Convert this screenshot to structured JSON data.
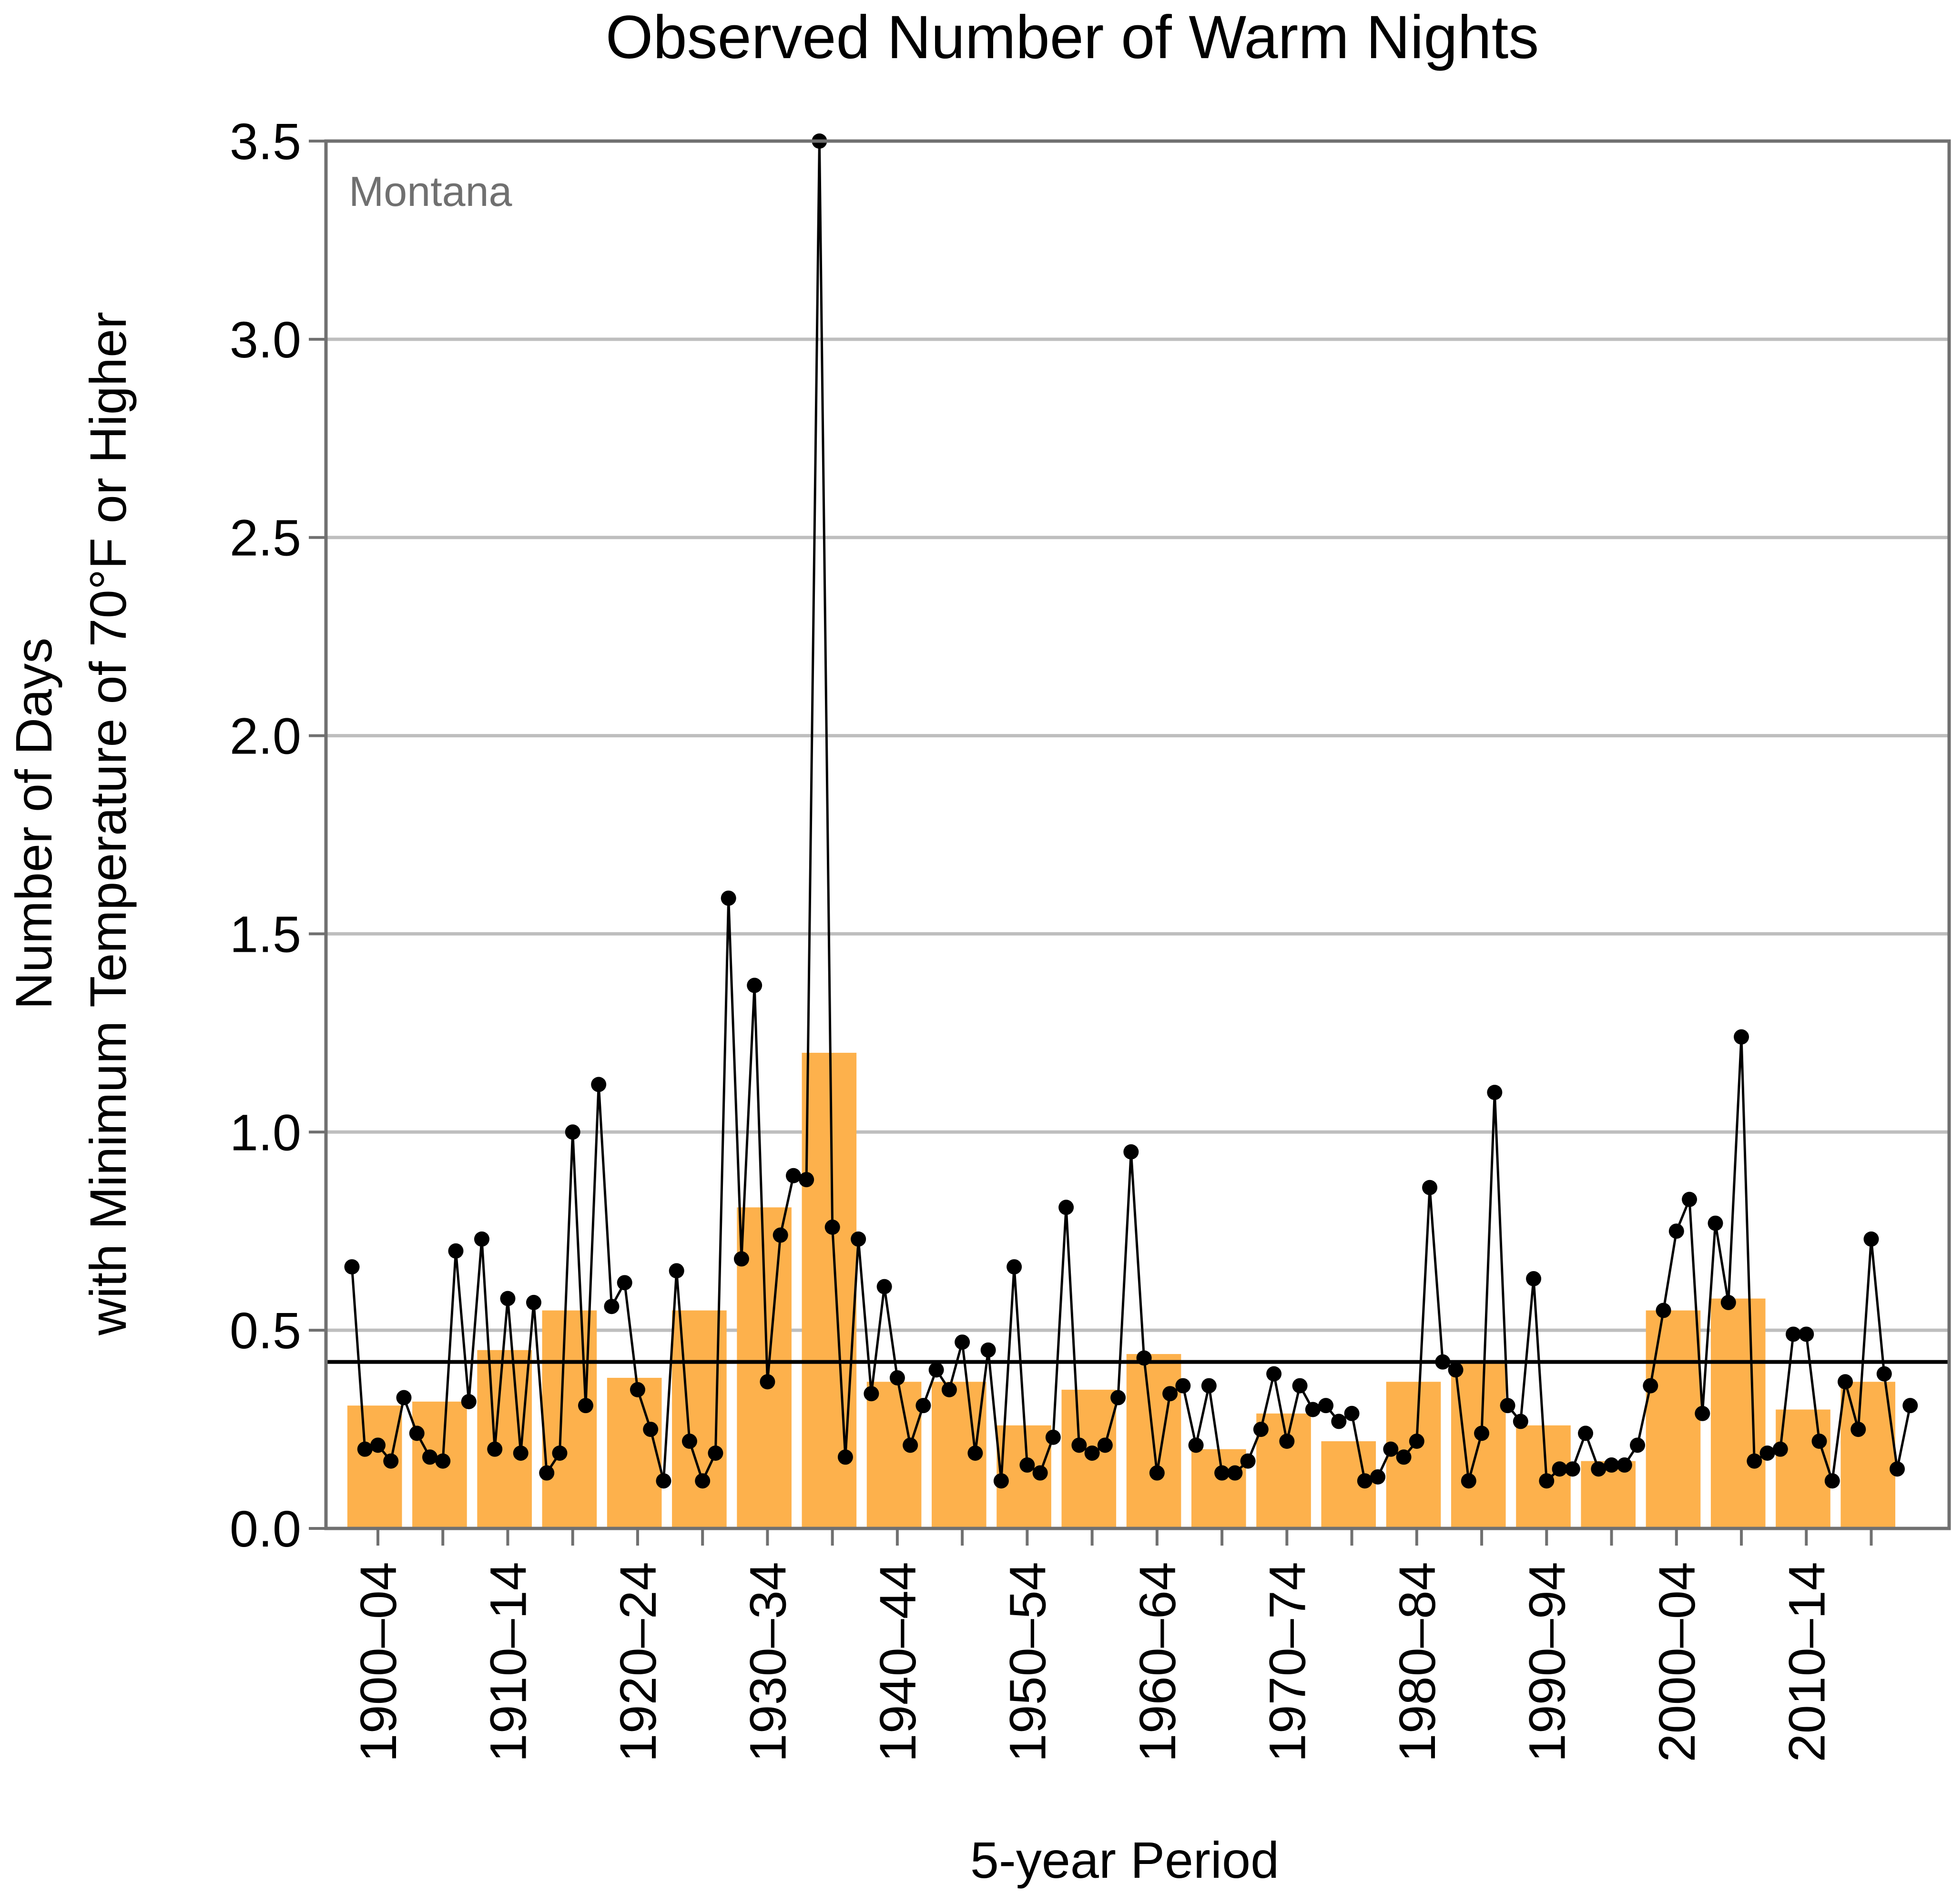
{
  "chart_data": {
    "type": "bar",
    "title": "Observed Number of Warm Nights",
    "region_label": "Montana",
    "xlabel": "5-year Period",
    "ylabel_line1": "Number of Days",
    "ylabel_line2": "with Minimum Temperature of 70°F or Higher",
    "ylim": [
      0,
      3.5
    ],
    "yticks": [
      "0.0",
      "0.5",
      "1.0",
      "1.5",
      "2.0",
      "2.5",
      "3.0",
      "3.5"
    ],
    "grid": "horizontal",
    "categories": [
      "1900–04",
      "1905–09",
      "1910–14",
      "1915–19",
      "1920–24",
      "1925–29",
      "1930–34",
      "1935–39",
      "1940–44",
      "1945–49",
      "1950–54",
      "1955–59",
      "1960–64",
      "1965–69",
      "1970–74",
      "1975–79",
      "1980–84",
      "1985–89",
      "1990–94",
      "1995–99",
      "2000–04",
      "2005–09",
      "2010–14",
      "2015–20"
    ],
    "tick_labels": [
      "1900–04",
      "1910–14",
      "1920–24",
      "1930–34",
      "1940–44",
      "1950–54",
      "1960–64",
      "1970–74",
      "1980–84",
      "1990–94",
      "2000–04",
      "2010–14"
    ],
    "series": [
      {
        "type": "bar",
        "values": [
          0.31,
          0.32,
          0.45,
          0.55,
          0.38,
          0.55,
          0.81,
          1.2,
          0.37,
          0.37,
          0.26,
          0.35,
          0.44,
          0.2,
          0.29,
          0.22,
          0.37,
          0.42,
          0.26,
          0.17,
          0.55,
          0.58,
          0.3,
          0.37
        ]
      },
      {
        "type": "line",
        "x": [
          1900,
          1901,
          1902,
          1903,
          1904,
          1905,
          1906,
          1907,
          1908,
          1909,
          1910,
          1911,
          1912,
          1913,
          1914,
          1915,
          1916,
          1917,
          1918,
          1919,
          1920,
          1921,
          1922,
          1923,
          1924,
          1925,
          1926,
          1927,
          1928,
          1929,
          1930,
          1931,
          1932,
          1933,
          1934,
          1935,
          1936,
          1937,
          1938,
          1939,
          1940,
          1941,
          1942,
          1943,
          1944,
          1945,
          1946,
          1947,
          1948,
          1949,
          1950,
          1951,
          1952,
          1953,
          1954,
          1955,
          1956,
          1957,
          1958,
          1959,
          1960,
          1961,
          1962,
          1963,
          1964,
          1965,
          1966,
          1967,
          1968,
          1969,
          1970,
          1971,
          1972,
          1973,
          1974,
          1975,
          1976,
          1977,
          1978,
          1979,
          1980,
          1981,
          1982,
          1983,
          1984,
          1985,
          1986,
          1987,
          1988,
          1989,
          1990,
          1991,
          1992,
          1993,
          1994,
          1995,
          1996,
          1997,
          1998,
          1999,
          2000,
          2001,
          2002,
          2003,
          2004,
          2005,
          2006,
          2007,
          2008,
          2009,
          2010,
          2011,
          2012,
          2013,
          2014,
          2015,
          2016,
          2017,
          2018,
          2019,
          2020
        ],
        "values": [
          0.66,
          0.2,
          0.21,
          0.17,
          0.33,
          0.24,
          0.18,
          0.17,
          0.7,
          0.32,
          0.73,
          0.2,
          0.58,
          0.19,
          0.57,
          0.14,
          0.19,
          1.0,
          0.31,
          1.12,
          0.56,
          0.62,
          0.35,
          0.25,
          0.12,
          0.65,
          0.22,
          0.12,
          0.19,
          1.59,
          0.68,
          1.37,
          0.37,
          0.74,
          0.89,
          0.88,
          3.5,
          0.76,
          0.18,
          0.73,
          0.34,
          0.61,
          0.38,
          0.21,
          0.31,
          0.4,
          0.35,
          0.47,
          0.19,
          0.45,
          0.12,
          0.66,
          0.16,
          0.14,
          0.23,
          0.81,
          0.21,
          0.19,
          0.21,
          0.33,
          0.95,
          0.43,
          0.14,
          0.34,
          0.36,
          0.21,
          0.36,
          0.14,
          0.14,
          0.17,
          0.25,
          0.39,
          0.22,
          0.36,
          0.3,
          0.31,
          0.27,
          0.29,
          0.12,
          0.13,
          0.2,
          0.18,
          0.22,
          0.86,
          0.42,
          0.4,
          0.12,
          0.24,
          1.1,
          0.31,
          0.27,
          0.63,
          0.12,
          0.15,
          0.15,
          0.24,
          0.15,
          0.16,
          0.16,
          0.21,
          0.36,
          0.55,
          0.75,
          0.83,
          0.29,
          0.77,
          0.57,
          1.24,
          0.17,
          0.19,
          0.2,
          0.49,
          0.49,
          0.22,
          0.12,
          0.37,
          0.25,
          0.73,
          0.39,
          0.15,
          0.31
        ]
      },
      {
        "type": "reference_line",
        "value": 0.42
      }
    ],
    "colors": {
      "bar": "#FDB14C",
      "line": "#000000",
      "grid": "#BEBEBE",
      "frame": "#707070"
    }
  }
}
